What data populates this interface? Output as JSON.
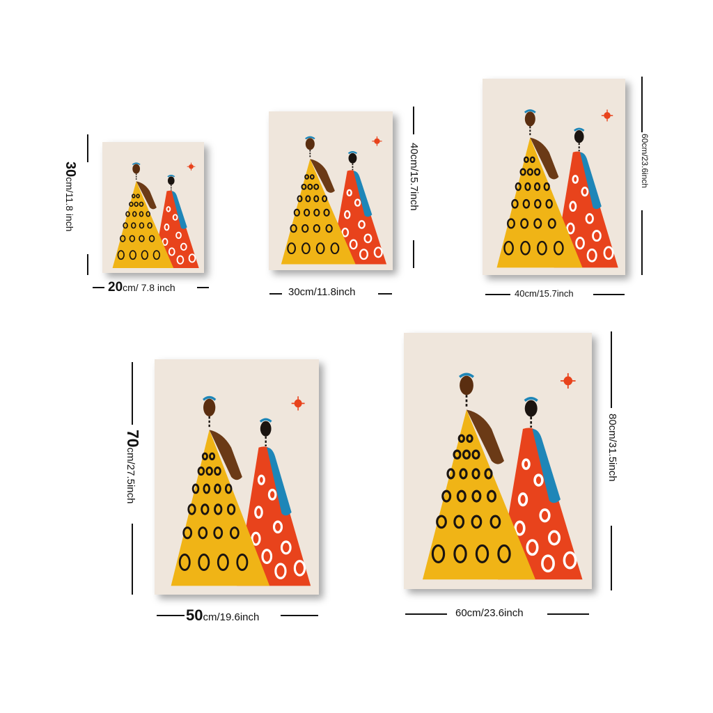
{
  "sizes": [
    {
      "width_num": "20",
      "width_text": "cm/ 7.8 inch",
      "height_num": "30",
      "height_text": "cm/11.8 inch"
    },
    {
      "width_text": "30cm/11.8inch",
      "height_text": "40cm/15.7inch"
    },
    {
      "width_text": "40cm/15.7inch",
      "height_text": "60cm/23.6inch"
    },
    {
      "width_num": "50",
      "width_text": "cm/19.6inch",
      "height_num": "70",
      "height_text": "cm/27.5inch"
    },
    {
      "width_text": "60cm/23.6inch",
      "height_text": "80cm/31.5inch"
    }
  ],
  "artwork": {
    "colors": {
      "paper": "#efe6dc",
      "yellow": "#f0b416",
      "red": "#e8431c",
      "blue": "#1e86b8",
      "brown": "#6b3a16",
      "ink": "#1a1410"
    },
    "motif": "two-figures-in-dresses"
  }
}
